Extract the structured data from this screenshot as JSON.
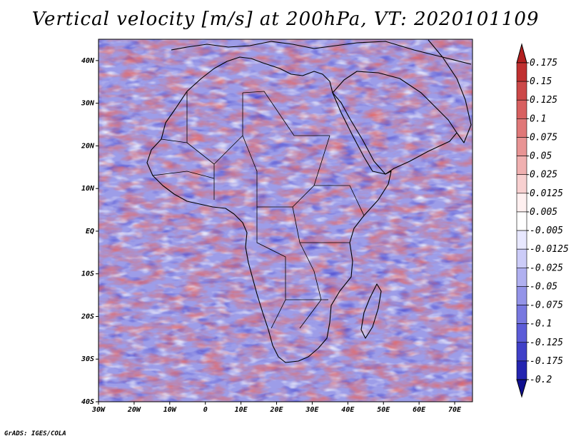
{
  "title": "Vertical velocity [m/s] at 200hPa, VT: 2020101109",
  "footer": "GrADS: IGES/COLA",
  "map": {
    "region": "Africa",
    "lat_range": [
      -40,
      45
    ],
    "lon_range": [
      -30,
      75
    ],
    "lat_ticks": [
      "40N",
      "30N",
      "20N",
      "10N",
      "EQ",
      "10S",
      "20S",
      "30S",
      "40S"
    ],
    "lat_values": [
      40,
      30,
      20,
      10,
      0,
      -10,
      -20,
      -30,
      -40
    ],
    "lon_ticks": [
      "30W",
      "20W",
      "10W",
      "0",
      "10E",
      "20E",
      "30E",
      "40E",
      "50E",
      "60E",
      "70E"
    ],
    "lon_values": [
      -30,
      -20,
      -10,
      0,
      10,
      20,
      30,
      40,
      50,
      60,
      70
    ]
  },
  "colorbar": {
    "labels": [
      "0.175",
      "0.15",
      "0.125",
      "0.1",
      "0.075",
      "0.05",
      "0.025",
      "0.0125",
      "0.005",
      "-0.005",
      "-0.0125",
      "-0.025",
      "-0.05",
      "-0.075",
      "-0.1",
      "-0.125",
      "-0.175",
      "-0.2"
    ],
    "colors": [
      "#b22020",
      "#c03030",
      "#cc4848",
      "#d86060",
      "#e07878",
      "#e89494",
      "#f0b0b0",
      "#f8d0d0",
      "#fff0f0",
      "#ffffff",
      "#e8e8ff",
      "#ccccf8",
      "#b0b0f0",
      "#9494e8",
      "#7878e0",
      "#5c5cd8",
      "#4040c8",
      "#2424b0",
      "#101090"
    ]
  },
  "colors": {
    "positive": "#e05a5a",
    "negative": "#6a6ae0",
    "background_field": "#c8c8f4",
    "border": "#000000"
  }
}
